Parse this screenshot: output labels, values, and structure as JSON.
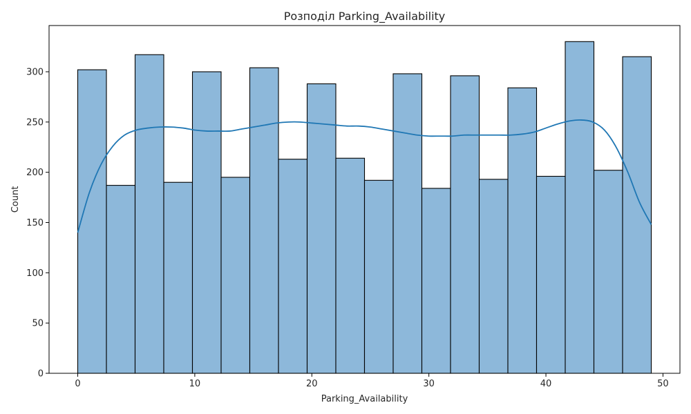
{
  "chart_data": {
    "type": "bar",
    "title": "Розподіл Parking_Availability",
    "xlabel": "Parking_Availability",
    "ylabel": "Count",
    "xlim": [
      -2.45,
      51.45
    ],
    "ylim": [
      0,
      346
    ],
    "xticks": [
      0,
      10,
      20,
      30,
      40,
      50
    ],
    "yticks": [
      0,
      50,
      100,
      150,
      200,
      250,
      300
    ],
    "grid": false,
    "bar_color": "#8db8da",
    "bar_edge_color": "#000000",
    "kde_color": "#1f77b4",
    "bin_edges": [
      0,
      2.45,
      4.9,
      7.35,
      9.8,
      12.25,
      14.7,
      17.15,
      19.6,
      22.05,
      24.5,
      26.95,
      29.4,
      31.85,
      34.3,
      36.75,
      39.2,
      41.65,
      44.1,
      46.55,
      49
    ],
    "counts": [
      302,
      187,
      317,
      190,
      300,
      195,
      304,
      213,
      288,
      214,
      192,
      298,
      184,
      296,
      193,
      284,
      196,
      330,
      202,
      315
    ],
    "kde": {
      "x": [
        0,
        1,
        2,
        3,
        4,
        5,
        6,
        7,
        8,
        9,
        10,
        11,
        12,
        13,
        14,
        15,
        16,
        17,
        18,
        19,
        20,
        21,
        22,
        23,
        24,
        25,
        26,
        27,
        28,
        29,
        30,
        31,
        32,
        33,
        34,
        35,
        36,
        37,
        38,
        39,
        40,
        41,
        42,
        43,
        44,
        45,
        46,
        47,
        48,
        49
      ],
      "y": [
        140,
        180,
        208,
        226,
        237,
        242,
        244,
        245,
        245,
        244,
        242,
        241,
        241,
        241,
        243,
        245,
        247,
        249,
        250,
        250,
        249,
        248,
        247,
        246,
        246,
        245,
        243,
        241,
        239,
        237,
        236,
        236,
        236,
        237,
        237,
        237,
        237,
        237,
        238,
        240,
        244,
        248,
        251,
        252,
        250,
        242,
        225,
        200,
        170,
        148
      ]
    }
  }
}
